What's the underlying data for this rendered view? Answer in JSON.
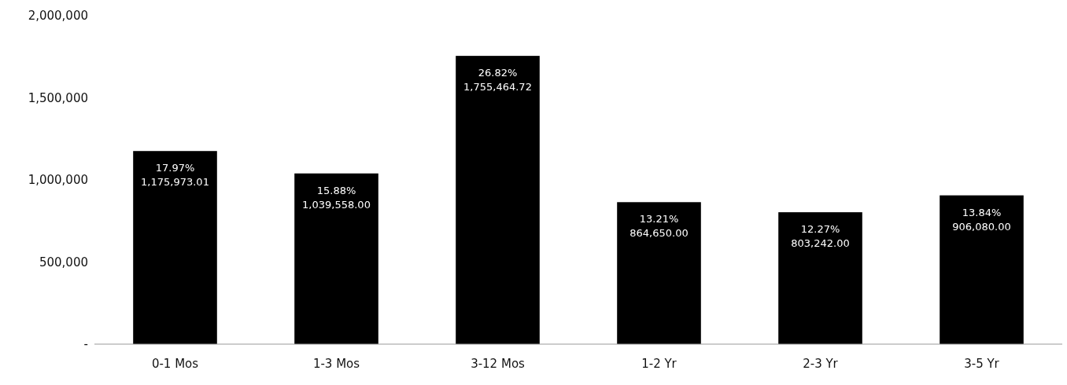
{
  "chart_data": {
    "type": "bar",
    "categories": [
      "0-1 Mos",
      "1-3 Mos",
      "3-12 Mos",
      "1-2 Yr",
      "2-3 Yr",
      "3-5 Yr"
    ],
    "values": [
      1175973.01,
      1039558.0,
      1755464.72,
      864650.0,
      803242.0,
      906080.0
    ],
    "value_labels": [
      "17.97%\n1,175,973.01",
      "15.88%\n1,039,558.00",
      "26.82%\n1,755,464.72",
      "13.21%\n864,650.00",
      "12.27%\n803,242.00",
      "13.84%\n906,080.00"
    ],
    "color": "#000000",
    "ylim": [
      0,
      2000000
    ],
    "yticks": [
      {
        "value": 0,
        "label": "-"
      },
      {
        "value": 500000,
        "label": "500,000"
      },
      {
        "value": 1000000,
        "label": "1,000,000"
      },
      {
        "value": 1500000,
        "label": "1,500,000"
      },
      {
        "value": 2000000,
        "label": "2,000,000"
      }
    ],
    "grid": false
  }
}
